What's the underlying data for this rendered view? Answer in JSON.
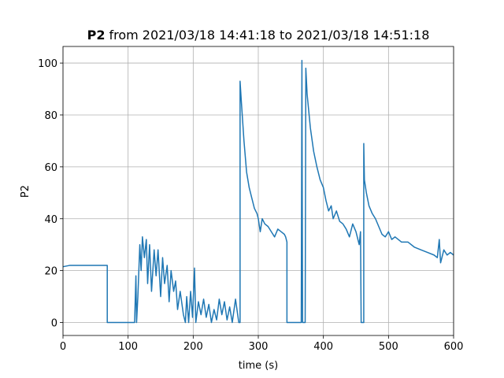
{
  "chart_data": {
    "type": "line",
    "title_variable": "P2",
    "title": "from 2021/03/18 14:41:18 to 2021/03/18 14:51:18",
    "x_label": "time (s)",
    "y_label": "P2",
    "xlim": [
      0,
      600
    ],
    "ylim": [
      -5,
      106.4
    ],
    "xticks": [
      0,
      100,
      200,
      300,
      400,
      500,
      600
    ],
    "yticks": [
      0,
      20,
      40,
      60,
      80,
      100
    ],
    "grid": true,
    "series": [
      {
        "color": "#1f77b4",
        "x": [
          0,
          10,
          30,
          50,
          68,
          68,
          110,
          112,
          113,
          115,
          118,
          120,
          122,
          125,
          128,
          130,
          133,
          136,
          140,
          143,
          146,
          150,
          153,
          156,
          160,
          163,
          166,
          170,
          173,
          176,
          180,
          185,
          188,
          190,
          193,
          196,
          199,
          202,
          204,
          208,
          212,
          216,
          220,
          224,
          228,
          232,
          236,
          240,
          244,
          248,
          252,
          256,
          260,
          265,
          270,
          272,
          272,
          274,
          278,
          282,
          286,
          290,
          294,
          298,
          300,
          303,
          306,
          310,
          315,
          320,
          325,
          330,
          335,
          340,
          342,
          344,
          344,
          366,
          367,
          368,
          372,
          373,
          375,
          380,
          385,
          390,
          395,
          400,
          404,
          408,
          412,
          415,
          420,
          425,
          430,
          435,
          440,
          445,
          450,
          455,
          457,
          458,
          462,
          462,
          463,
          466,
          470,
          475,
          480,
          485,
          490,
          495,
          500,
          505,
          510,
          520,
          530,
          540,
          550,
          560,
          570,
          575,
          578,
          580,
          585,
          590,
          595,
          600
        ],
        "values": [
          21.5,
          22,
          22,
          22,
          22,
          0,
          0,
          18,
          0,
          10,
          30,
          20,
          33,
          25,
          32,
          15,
          30,
          12,
          28,
          18,
          28,
          10,
          25,
          15,
          22,
          8,
          20,
          12,
          16,
          5,
          12,
          3,
          0,
          10,
          0,
          12,
          2,
          21,
          0,
          8,
          3,
          9,
          2,
          7,
          0,
          5,
          1,
          9,
          3,
          8,
          1,
          6,
          0,
          9,
          0,
          0,
          93,
          85,
          70,
          58,
          52,
          48,
          44,
          42,
          40,
          35,
          40,
          38,
          37,
          35,
          33,
          36,
          35,
          34,
          33,
          31,
          0,
          0,
          101,
          0,
          0,
          98,
          88,
          75,
          66,
          60,
          55,
          52,
          47,
          43,
          45,
          40,
          43,
          39,
          38,
          36,
          33,
          38,
          35,
          30,
          35,
          0,
          0,
          69,
          55,
          50,
          45,
          42,
          40,
          37,
          34,
          33,
          35,
          32,
          33,
          31,
          31,
          29,
          28,
          27,
          26,
          25,
          32,
          23,
          28,
          26,
          27,
          26
        ]
      }
    ]
  }
}
